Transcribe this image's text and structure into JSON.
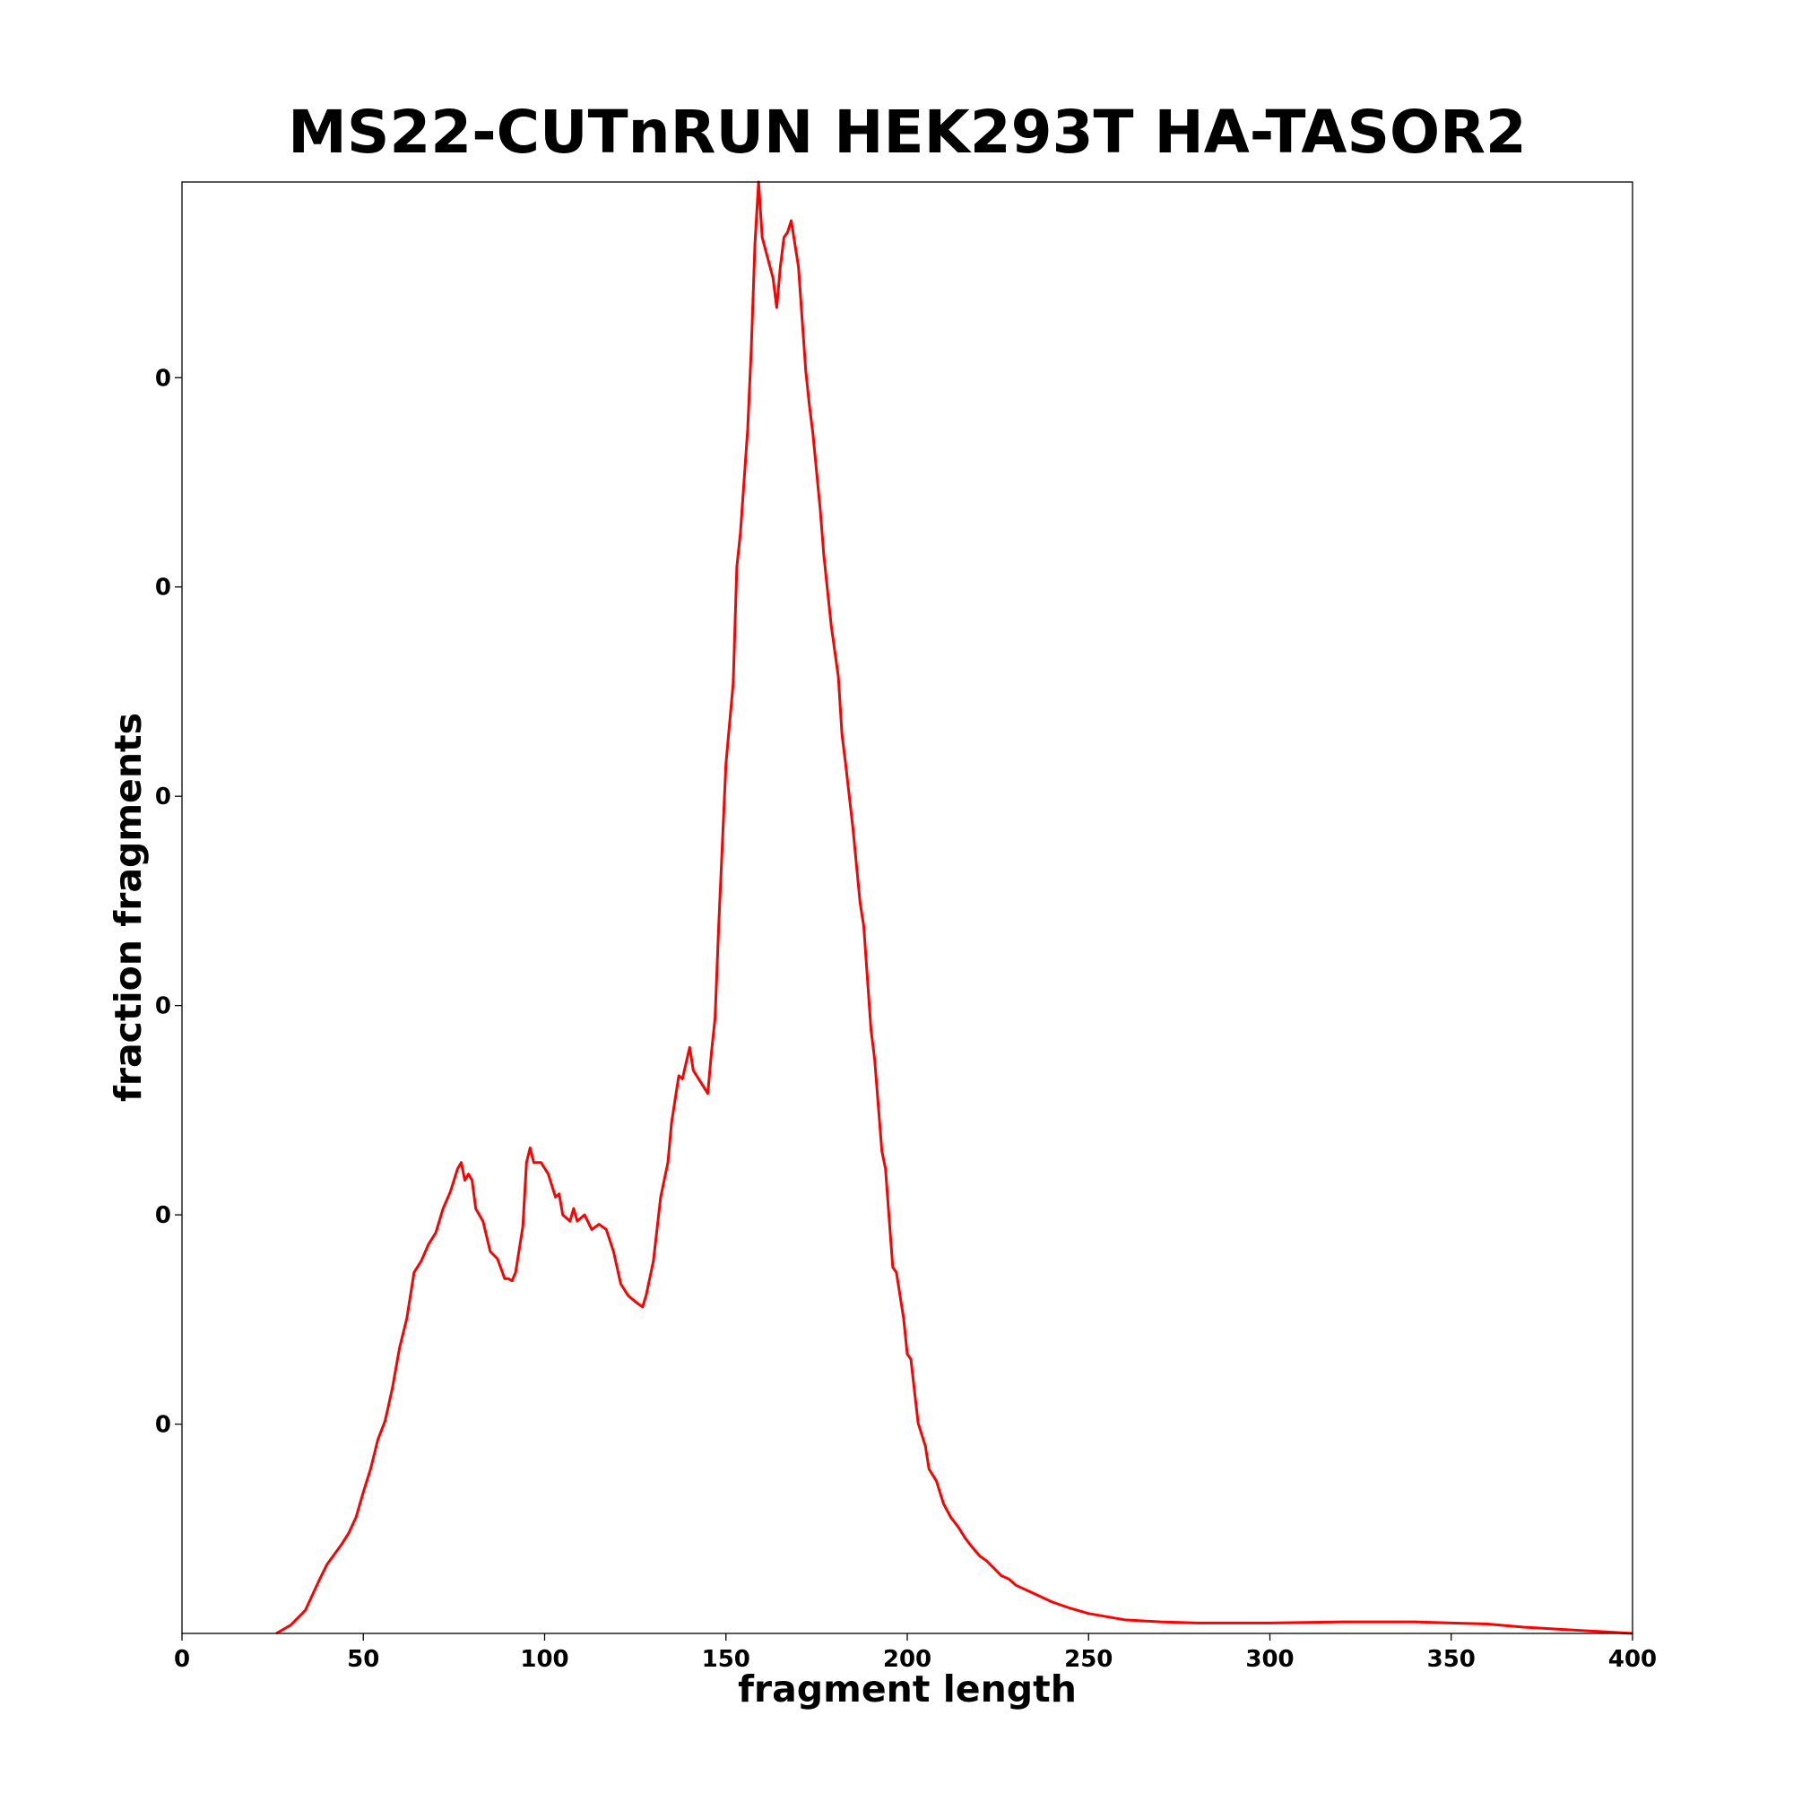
{
  "chart_data": {
    "type": "line",
    "title": "MS22-CUTnRUN HEK293T HA-TASOR2",
    "xlabel": "fragment length",
    "ylabel": "fraction fragments",
    "x": [
      26,
      30,
      34,
      38,
      40,
      44,
      46,
      48,
      50,
      52,
      54,
      56,
      58,
      60,
      62,
      64,
      66,
      68,
      70,
      72,
      74,
      76,
      77,
      78,
      79,
      80,
      81,
      83,
      85,
      87,
      89,
      90,
      91,
      92,
      94,
      95,
      96,
      97,
      99,
      101,
      103,
      104,
      105,
      107,
      108,
      109,
      111,
      113,
      115,
      117,
      119,
      121,
      123,
      125,
      127,
      128,
      130,
      132,
      134,
      135,
      137,
      138,
      140,
      141,
      143,
      145,
      146,
      147,
      148,
      150,
      152,
      153,
      154,
      156,
      157,
      158,
      159,
      160,
      163,
      164,
      165,
      166,
      167,
      168,
      170,
      172,
      173,
      174,
      176,
      177,
      179,
      181,
      182,
      183,
      185,
      187,
      188,
      190,
      191,
      193,
      194,
      196,
      197,
      199,
      200,
      201,
      203,
      205,
      206,
      208,
      210,
      212,
      214,
      216,
      218,
      220,
      222,
      224,
      226,
      228,
      230,
      235,
      240,
      245,
      250,
      260,
      270,
      280,
      290,
      300,
      320,
      340,
      350,
      360,
      370,
      380,
      390,
      400
    ],
    "series": [
      {
        "name": "fraction fragments",
        "color": "#ff0000",
        "values": [
          0,
          8e-05,
          0.00022,
          0.00052,
          0.00066,
          0.00085,
          0.00096,
          0.00111,
          0.00135,
          0.00157,
          0.00185,
          0.00203,
          0.00234,
          0.00273,
          0.00301,
          0.00345,
          0.00356,
          0.00372,
          0.00383,
          0.00406,
          0.00422,
          0.00444,
          0.0045,
          0.00433,
          0.00439,
          0.00433,
          0.00406,
          0.00394,
          0.00365,
          0.00358,
          0.00339,
          0.00339,
          0.00337,
          0.00345,
          0.00389,
          0.0045,
          0.00464,
          0.0045,
          0.0045,
          0.00439,
          0.00417,
          0.0042,
          0.004,
          0.00394,
          0.00406,
          0.00394,
          0.004,
          0.00386,
          0.00391,
          0.00386,
          0.00365,
          0.00334,
          0.00323,
          0.00317,
          0.00312,
          0.00323,
          0.00356,
          0.00417,
          0.0045,
          0.00488,
          0.00533,
          0.0053,
          0.0056,
          0.00538,
          0.00527,
          0.00516,
          0.00555,
          0.00588,
          0.00676,
          0.00831,
          0.00908,
          0.01019,
          0.01052,
          0.01151,
          0.01229,
          0.01328,
          0.01387,
          0.01334,
          0.01295,
          0.01267,
          0.01306,
          0.01334,
          0.01339,
          0.0135,
          0.01306,
          0.01207,
          0.01174,
          0.01146,
          0.01074,
          0.0103,
          0.00964,
          0.00914,
          0.00859,
          0.00831,
          0.0077,
          0.00698,
          0.00676,
          0.00577,
          0.00549,
          0.00461,
          0.00444,
          0.0035,
          0.00345,
          0.00301,
          0.00267,
          0.00262,
          0.00201,
          0.00179,
          0.00157,
          0.00146,
          0.00124,
          0.00111,
          0.00102,
          0.00091,
          0.00082,
          0.00074,
          0.00069,
          0.00062,
          0.00055,
          0.00052,
          0.00046,
          0.00038,
          0.0003,
          0.00024,
          0.00019,
          0.00013,
          0.00011,
          0.0001,
          0.0001,
          0.0001,
          0.00011,
          0.00011,
          0.0001,
          9e-05,
          6e-05,
          4e-05,
          2e-05,
          0
        ]
      }
    ],
    "xlim": [
      0,
      400
    ],
    "xticks": [
      0,
      50,
      100,
      150,
      200,
      250,
      300,
      350,
      400
    ],
    "ylim": [
      0,
      0.01387
    ],
    "yticks": [
      {
        "value": 0.002,
        "label": "0"
      },
      {
        "value": 0.004,
        "label": "0"
      },
      {
        "value": 0.006,
        "label": "0"
      },
      {
        "value": 0.008,
        "label": "0"
      },
      {
        "value": 0.01,
        "label": "0"
      },
      {
        "value": 0.012,
        "label": "0"
      }
    ],
    "grid": false
  }
}
